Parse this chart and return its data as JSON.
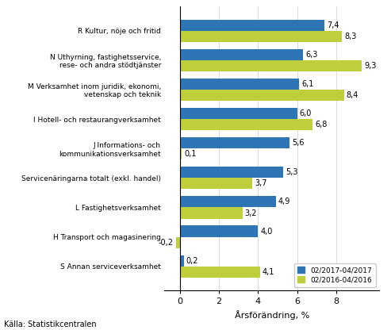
{
  "categories": [
    "S Annan serviceverksamhet",
    "H Transport och magasinering",
    "L Fastighetsverksamhet",
    "Servicenäringarna totalt (exkl. handel)",
    "J Informations- och\nkommunikationsverksamhet",
    "I Hotell- och restaurangverksamhet",
    "M Verksamhet inom juridik, ekonomi,\nvetenskap och teknik",
    "N Uthyrning, fastighetsservice,\nrese- och andra stödtjänster",
    "R Kultur, nöje och fritid"
  ],
  "values_2017": [
    0.2,
    4.0,
    4.9,
    5.3,
    5.6,
    6.0,
    6.1,
    6.3,
    7.4
  ],
  "values_2016": [
    4.1,
    -0.2,
    3.2,
    3.7,
    0.1,
    6.8,
    8.4,
    9.3,
    8.3
  ],
  "labels_2017": [
    "0,2",
    "4,0",
    "4,9",
    "5,3",
    "5,6",
    "6,0",
    "6,1",
    "6,3",
    "7,4"
  ],
  "labels_2016": [
    "4,1",
    "-0,2",
    "3,2",
    "3,7",
    "0,1",
    "6,8",
    "8,4",
    "9,3",
    "8,3"
  ],
  "color_2017": "#2E75B6",
  "color_2016": "#BFCE3B",
  "xlabel": "Årsförändring, %",
  "legend_2017": "02/2017-04/2017",
  "legend_2016": "02/2016-04/2016",
  "footer": "Källa: Statistikcentralen",
  "xlim": [
    -0.8,
    10.2
  ],
  "xticks": [
    0,
    2,
    4,
    6,
    8
  ],
  "bar_height": 0.38
}
